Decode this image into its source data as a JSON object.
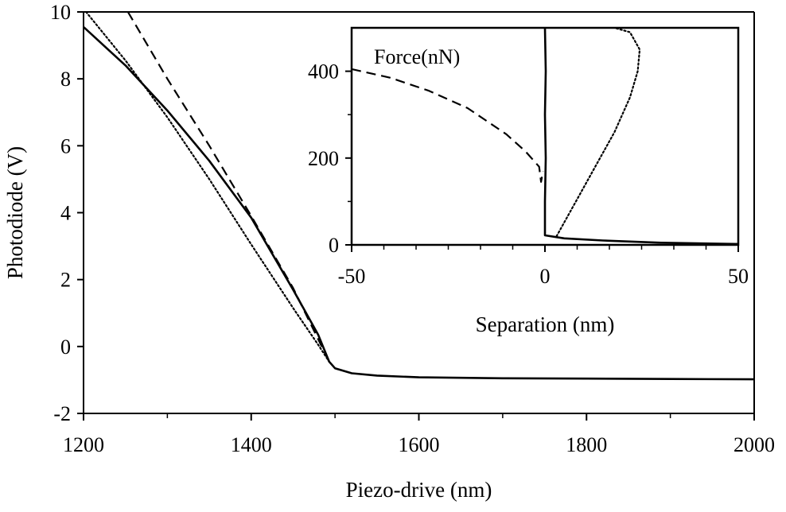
{
  "chart_data": [
    {
      "type": "line",
      "title": "",
      "xlabel": "Piezo-drive (nm)",
      "ylabel": "Photodiode (V)",
      "xlim": [
        1200,
        2000
      ],
      "ylim": [
        -2,
        10
      ],
      "x_ticks": [
        1200,
        1400,
        1600,
        1800,
        2000
      ],
      "y_ticks": [
        -2,
        0,
        2,
        4,
        6,
        8,
        10
      ],
      "x_tick_labels": [
        "1200",
        "1400",
        "1600",
        "1800",
        "2000"
      ],
      "y_tick_labels": [
        "-2",
        "0",
        "2",
        "4",
        "6",
        "8",
        "10"
      ],
      "grid": false,
      "series": [
        {
          "style": "solid",
          "color": "#000000",
          "points": [
            [
              1200,
              9.55
            ],
            [
              1250,
              8.4
            ],
            [
              1300,
              7.05
            ],
            [
              1350,
              5.55
            ],
            [
              1400,
              3.85
            ],
            [
              1450,
              1.7
            ],
            [
              1480,
              0.35
            ],
            [
              1493,
              -0.45
            ],
            [
              1500,
              -0.65
            ],
            [
              1520,
              -0.8
            ],
            [
              1550,
              -0.87
            ],
            [
              1600,
              -0.92
            ],
            [
              1700,
              -0.95
            ],
            [
              1800,
              -0.96
            ],
            [
              1900,
              -0.97
            ],
            [
              2000,
              -0.98
            ]
          ]
        },
        {
          "style": "dashed",
          "color": "#000000",
          "points": [
            [
              1253,
              10.0
            ],
            [
              1300,
              8.0
            ],
            [
              1350,
              6.0
            ],
            [
              1400,
              3.9
            ],
            [
              1450,
              1.75
            ],
            [
              1493,
              -0.45
            ]
          ]
        },
        {
          "style": "dotted",
          "color": "#000000",
          "points": [
            [
              1203,
              10.0
            ],
            [
              1250,
              8.55
            ],
            [
              1300,
              6.85
            ],
            [
              1350,
              5.0
            ],
            [
              1400,
              3.05
            ],
            [
              1450,
              1.15
            ],
            [
              1480,
              0.05
            ],
            [
              1493,
              -0.45
            ]
          ]
        }
      ]
    },
    {
      "type": "line",
      "title": "",
      "annotation": "Force(nN)",
      "xlabel": "Separation (nm)",
      "ylabel": "",
      "xlim": [
        -50,
        50
      ],
      "ylim": [
        0,
        500
      ],
      "x_ticks": [
        -50,
        0,
        50
      ],
      "y_ticks": [
        0,
        200,
        400
      ],
      "x_tick_labels": [
        "-50",
        "0",
        "50"
      ],
      "y_tick_labels": [
        "0",
        "200",
        "400"
      ],
      "grid": false,
      "series": [
        {
          "style": "dashed",
          "color": "#000000",
          "points": [
            [
              -50,
              405
            ],
            [
              -40,
              385
            ],
            [
              -30,
              355
            ],
            [
              -20,
              315
            ],
            [
              -10,
              255
            ],
            [
              -5,
              215
            ],
            [
              -1.5,
              180
            ],
            [
              -1,
              145
            ],
            [
              -0.5,
              170
            ]
          ]
        },
        {
          "style": "solid",
          "color": "#000000",
          "points": [
            [
              0,
              500
            ],
            [
              0.2,
              400
            ],
            [
              0,
              300
            ],
            [
              0.2,
              200
            ],
            [
              0,
              100
            ],
            [
              0,
              22
            ],
            [
              5,
              15
            ],
            [
              15,
              10
            ],
            [
              30,
              5
            ],
            [
              50,
              2
            ]
          ]
        },
        {
          "style": "dotted",
          "color": "#000000",
          "points": [
            [
              3,
              20
            ],
            [
              8,
              100
            ],
            [
              13,
              180
            ],
            [
              18,
              260
            ],
            [
              22,
              340
            ],
            [
              24,
              400
            ],
            [
              24.5,
              450
            ],
            [
              22,
              490
            ],
            [
              18,
              500
            ]
          ]
        }
      ]
    }
  ]
}
